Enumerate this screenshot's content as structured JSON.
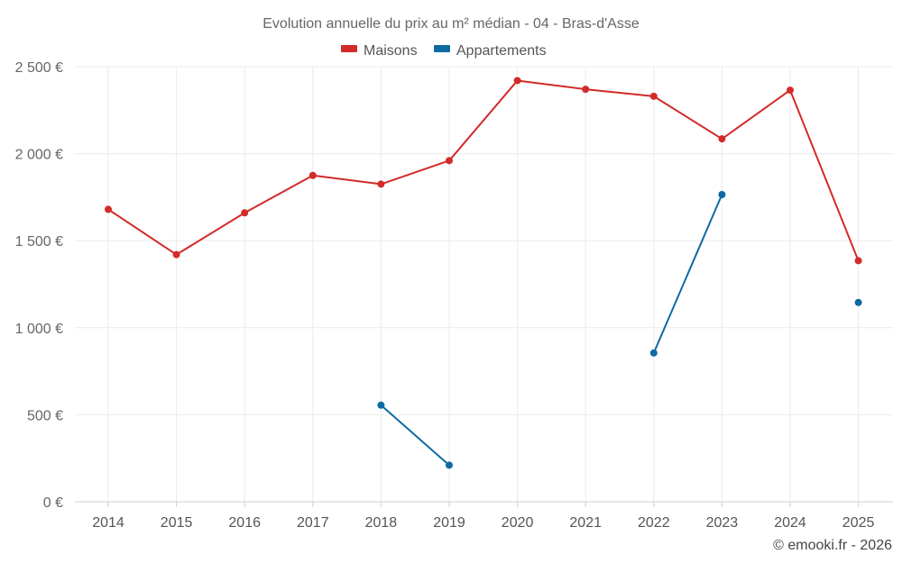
{
  "chart_data": {
    "type": "line",
    "title": "Evolution annuelle du prix au m² médian - 04 - Bras-d'Asse",
    "categories": [
      "2014",
      "2015",
      "2016",
      "2017",
      "2018",
      "2019",
      "2020",
      "2021",
      "2022",
      "2023",
      "2024",
      "2025"
    ],
    "ylim": [
      0,
      2500
    ],
    "yticks": [
      0,
      500,
      1000,
      1500,
      2000,
      2500
    ],
    "ytick_labels": [
      "0 €",
      "500 €",
      "1 000 €",
      "1 500 €",
      "2 000 €",
      "2 500 €"
    ],
    "grid": true,
    "legend_position": "top-center",
    "series": [
      {
        "name": "Maisons",
        "color": "#d32a2a",
        "values": [
          1680,
          1420,
          1660,
          1875,
          1825,
          1960,
          2420,
          2370,
          2330,
          2085,
          2365,
          1385
        ]
      },
      {
        "name": "Appartements",
        "color": "#0e6aa1",
        "values": [
          null,
          null,
          null,
          null,
          555,
          210,
          null,
          null,
          855,
          1765,
          null,
          1145
        ]
      }
    ],
    "credit": "© emooki.fr - 2026"
  }
}
